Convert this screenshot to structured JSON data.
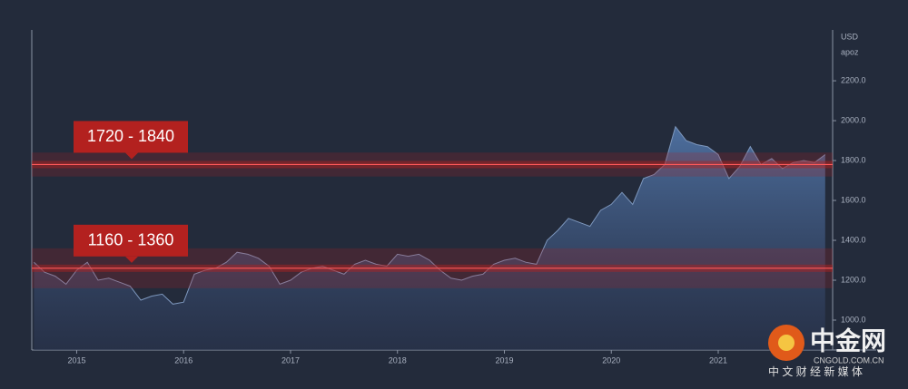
{
  "chart_data": {
    "type": "area",
    "axis_unit": "USD",
    "axis_subunit": "apoz",
    "x": [
      2014.6,
      2014.7,
      2014.8,
      2014.9,
      2015.0,
      2015.1,
      2015.2,
      2015.3,
      2015.4,
      2015.5,
      2015.6,
      2015.7,
      2015.8,
      2015.9,
      2016.0,
      2016.1,
      2016.2,
      2016.3,
      2016.4,
      2016.5,
      2016.6,
      2016.7,
      2016.8,
      2016.9,
      2017.0,
      2017.1,
      2017.2,
      2017.3,
      2017.4,
      2017.5,
      2017.6,
      2017.7,
      2017.8,
      2017.9,
      2018.0,
      2018.1,
      2018.2,
      2018.3,
      2018.4,
      2018.5,
      2018.6,
      2018.7,
      2018.8,
      2018.9,
      2019.0,
      2019.1,
      2019.2,
      2019.3,
      2019.4,
      2019.5,
      2019.6,
      2019.7,
      2019.8,
      2019.9,
      2020.0,
      2020.1,
      2020.2,
      2020.3,
      2020.4,
      2020.5,
      2020.6,
      2020.7,
      2020.8,
      2020.9,
      2021.0,
      2021.1,
      2021.2,
      2021.3,
      2021.4,
      2021.5,
      2021.6,
      2021.7,
      2021.8,
      2021.9,
      2022.0
    ],
    "values": [
      1290,
      1240,
      1220,
      1180,
      1250,
      1290,
      1200,
      1210,
      1190,
      1170,
      1100,
      1120,
      1130,
      1080,
      1090,
      1230,
      1250,
      1260,
      1290,
      1340,
      1330,
      1310,
      1270,
      1180,
      1200,
      1240,
      1260,
      1270,
      1250,
      1230,
      1280,
      1300,
      1280,
      1270,
      1330,
      1320,
      1330,
      1300,
      1250,
      1210,
      1200,
      1220,
      1230,
      1280,
      1300,
      1310,
      1290,
      1280,
      1400,
      1450,
      1510,
      1490,
      1470,
      1550,
      1580,
      1640,
      1580,
      1710,
      1730,
      1780,
      1970,
      1900,
      1880,
      1870,
      1830,
      1710,
      1770,
      1870,
      1780,
      1810,
      1760,
      1790,
      1800,
      1790,
      1830
    ],
    "line_color": "#7d97bd",
    "xlim": [
      2014.58,
      2022.07
    ],
    "ylim": [
      850,
      2455
    ],
    "xticks": [
      2015,
      2016,
      2017,
      2018,
      2019,
      2020,
      2021
    ],
    "yticks": [
      {
        "value": 1000,
        "label": "1000.0"
      },
      {
        "value": 1200,
        "label": "1200.0"
      },
      {
        "value": 1400,
        "label": "1400.0"
      },
      {
        "value": 1600,
        "label": "1600.0"
      },
      {
        "value": 1800,
        "label": "1800.0"
      },
      {
        "value": 2000,
        "label": "2000.0"
      },
      {
        "value": 2200,
        "label": "2200.0"
      }
    ],
    "bands": [
      {
        "label": "1720 - 1840",
        "low": 1720,
        "high": 1840
      },
      {
        "label": "1160 - 1360",
        "low": 1160,
        "high": 1360
      }
    ],
    "band_color": "#b3211f",
    "watermark": {
      "name": "中金网",
      "site": "CNGOLD.COM.CN",
      "slogan": "中 文 财 经 新 媒 体"
    }
  }
}
